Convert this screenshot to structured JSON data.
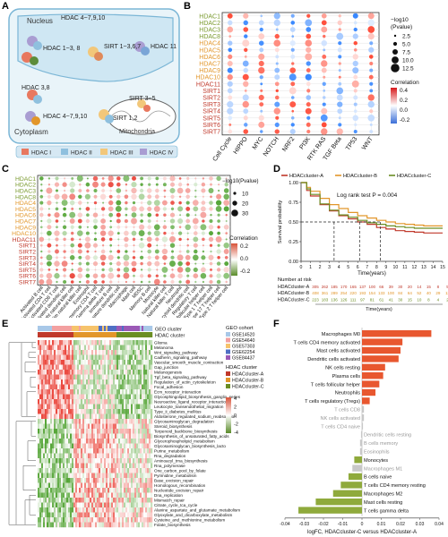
{
  "panel_labels": [
    "A",
    "B",
    "C",
    "D",
    "E",
    "F"
  ],
  "panelA": {
    "nucleus_label": "Nucleus",
    "cytoplasm_label": "Cytoplasm",
    "mito_label": "Mitochondria",
    "labels": [
      "HDAC 4~7,9,10",
      "HDAC 1~3, 8",
      "SIRT 1~3,6,7",
      "HDAC 11",
      "HDAC 3,8",
      "HDAC 4~7,9,10",
      "SIRT 1,2",
      "SIRT 3~5"
    ],
    "legend": [
      {
        "label": "HDAC I",
        "color": "#e8785f"
      },
      {
        "label": "HDAC II",
        "color": "#8fc0de"
      },
      {
        "label": "HDAC III",
        "color": "#f2c77a"
      },
      {
        "label": "HDAC IV",
        "color": "#a99dd2"
      }
    ]
  },
  "panelB": {
    "rows": [
      {
        "label": "HDAC1",
        "color": "#7a9a2e"
      },
      {
        "label": "HDAC2",
        "color": "#7a9a2e"
      },
      {
        "label": "HDAC3",
        "color": "#7a9a2e"
      },
      {
        "label": "HDAC8",
        "color": "#7a9a2e"
      },
      {
        "label": "HDAC4",
        "color": "#e2962a"
      },
      {
        "label": "HDAC5",
        "color": "#e2962a"
      },
      {
        "label": "HDAC6",
        "color": "#e2962a"
      },
      {
        "label": "HDAC7",
        "color": "#e2962a"
      },
      {
        "label": "HDAC9",
        "color": "#e2962a"
      },
      {
        "label": "HDAC10",
        "color": "#e2962a"
      },
      {
        "label": "HDAC11",
        "color": "#c0392b"
      },
      {
        "label": "SIRT1",
        "color": "#c0392b"
      },
      {
        "label": "SIRT2",
        "color": "#c0392b"
      },
      {
        "label": "SIRT3",
        "color": "#c0392b"
      },
      {
        "label": "SIRT4",
        "color": "#c0392b"
      },
      {
        "label": "SIRT5",
        "color": "#c0392b"
      },
      {
        "label": "SIRT6",
        "color": "#c0392b"
      },
      {
        "label": "SIRT7",
        "color": "#c0392b"
      }
    ],
    "cols": [
      "Cell Cycle",
      "HIPPO",
      "MYC",
      "NOTCH",
      "NRF2",
      "PI3K",
      "RTK RAS",
      "TGF Beta",
      "TP53",
      "WNT"
    ],
    "size_legend_title": "−log10\n(Pvalue)",
    "size_legend": [
      "2.5",
      "5.0",
      "7.5",
      "10.0",
      "12.5"
    ],
    "color_legend_title": "Correlation",
    "color_ticks": [
      "0.4",
      "0.2",
      "0.0",
      "-0.2"
    ]
  },
  "panelC": {
    "rows": [
      {
        "label": "HDAC1",
        "color": "#7a9a2e"
      },
      {
        "label": "HDAC2",
        "color": "#7a9a2e"
      },
      {
        "label": "HDAC3",
        "color": "#7a9a2e"
      },
      {
        "label": "HDAC8",
        "color": "#7a9a2e"
      },
      {
        "label": "HDAC4",
        "color": "#e2962a"
      },
      {
        "label": "HDAC5",
        "color": "#e2962a"
      },
      {
        "label": "HDAC6",
        "color": "#e2962a"
      },
      {
        "label": "HDAC7",
        "color": "#e2962a"
      },
      {
        "label": "HDAC9",
        "color": "#e2962a"
      },
      {
        "label": "HDAC10",
        "color": "#e2962a"
      },
      {
        "label": "HDAC11",
        "color": "#c0392b"
      },
      {
        "label": "SIRT1",
        "color": "#c0392b"
      },
      {
        "label": "SIRT2",
        "color": "#c0392b"
      },
      {
        "label": "SIRT3",
        "color": "#c0392b"
      },
      {
        "label": "SIRT4",
        "color": "#c0392b"
      },
      {
        "label": "SIRT5",
        "color": "#c0392b"
      },
      {
        "label": "SIRT6",
        "color": "#c0392b"
      },
      {
        "label": "SIRT7",
        "color": "#c0392b"
      }
    ],
    "cols": [
      "Activated B cell",
      "Activated CD4 T cell",
      "Activated CD8 T cell",
      "Activated dendritic cell",
      "CD56bright natural killer cell",
      "CD56dim natural killer cell",
      "Eosinophil",
      "Effector memory CD4 T cell",
      "Gamma delta T cell",
      "Immature B cell",
      "Immature dendritic cell",
      "Macrophage",
      "Mast cell",
      "MDSC",
      "Memory B cell",
      "Monocyte",
      "Natural killer cell",
      "Natural killer T cell",
      "Neutrophil",
      "Plasmacytoid dendritic cell",
      "Regulatory T cell",
      "T follicular helper cell",
      "Type 1 T helper cell",
      "Type 17 T helper cell",
      "Type 2 T helper cell"
    ],
    "size_legend_title": "−log10(Pvalue)",
    "size_legend": [
      "10",
      "20",
      "30"
    ],
    "color_legend_title": "Correlation",
    "color_ticks": [
      "0.2",
      "0.0",
      "-0.2"
    ]
  },
  "panelD": {
    "legend": [
      {
        "label": "HDACcluster-A",
        "color": "#c0392b"
      },
      {
        "label": "HDACcluster-B",
        "color": "#e2962a"
      },
      {
        "label": "HDACcluster-C",
        "color": "#6b8e23"
      }
    ],
    "annotation": "Log rank test P = 0.004",
    "ylabel": "Survival probability",
    "xlabel": "Time(years)",
    "xticks": [
      "0",
      "1",
      "2",
      "3",
      "4",
      "5",
      "6",
      "7",
      "8",
      "9",
      "10",
      "11",
      "12",
      "13",
      "14",
      "15"
    ],
    "yticks": [
      "0.00",
      "0.25",
      "0.50",
      "0.75",
      "1.00"
    ],
    "risk_title": "Number at risk",
    "risk_rows": [
      {
        "label": "HDACcluster-A",
        "color": "#c0392b",
        "values": [
          "305",
          "262",
          "185",
          "170",
          "165",
          "137",
          "100",
          "66",
          "39",
          "30",
          "20",
          "14",
          "15",
          "8",
          "5",
          "1"
        ]
      },
      {
        "label": "HDACcluster-B",
        "color": "#e2962a",
        "values": [
          "408",
          "361",
          "289",
          "254",
          "220",
          "193",
          "154",
          "133",
          "100",
          "84",
          "64",
          "52",
          "40",
          "29",
          "11",
          "0"
        ]
      },
      {
        "label": "HDACcluster-C",
        "color": "#6b8e23",
        "values": [
          "223",
          "183",
          "136",
          "126",
          "111",
          "97",
          "81",
          "61",
          "41",
          "30",
          "15",
          "10",
          "8",
          "4",
          "2",
          "0"
        ]
      }
    ],
    "risk_xlabel": "Time(years)"
  },
  "panelE": {
    "legend_geo_title": "GEO cohort",
    "geo_cohorts": [
      {
        "label": "GSE14520",
        "color": "#a8c8e8"
      },
      {
        "label": "GSE54640",
        "color": "#f3a0a0"
      },
      {
        "label": "GSE57303",
        "color": "#f6c36b"
      },
      {
        "label": "GSE62254",
        "color": "#4f6fc4"
      },
      {
        "label": "GSE84437",
        "color": "#9b59b6"
      }
    ],
    "legend_hdac_title": "HDAC cluster",
    "hdac_clusters": [
      {
        "label": "HDACcluster-A",
        "color": "#c0392b"
      },
      {
        "label": "HDACcluster-B",
        "color": "#e2962a"
      },
      {
        "label": "HDACcluster-C",
        "color": "#6b8e23"
      }
    ],
    "track_labels": [
      "GEO cluster",
      "HDAC cluster"
    ],
    "color_ticks": [
      "4",
      "2",
      "0",
      "-2",
      "-4"
    ],
    "pathways": [
      "Glioma",
      "Melanoma",
      "Wnt_signaling_pathway",
      "Cadherin_signaling_pathway",
      "Vascular_smooth_muscle_contraction",
      "Gap_junction",
      "Melanogenesis",
      "Tgf_beta_signaling_pathway",
      "Regulation_of_actin_cytoskeleton",
      "Focal_adhesion",
      "Ecm_receptor_interaction",
      "Glycosphingolipid_biosynthesis_ganglio_series",
      "Neuroactive_ligand_receptor_interaction",
      "Leukocyte_transendothelial_migration",
      "Type_ii_diabetes_mellitus",
      "Aldosterone_regulated_sodium_reabsorption",
      "Glycosaminoglycan_degradation",
      "Steroid_biosynthesis",
      "Terpenoid_backbone_biosynthesis",
      "Biosynthesis_of_unsaturated_fatty_acids",
      "Glycerophospholipid_metabolism",
      "Glycosaminoglycan_biosynthesis_lacto",
      "Purine_metabolism",
      "Rna_degradation",
      "Aminoacyl_trna_biosynthesis",
      "Rna_polymerase",
      "One_carbon_pool_by_folate",
      "Pyrimidine_metabolism",
      "Base_excision_repair",
      "Homologous_recombination",
      "Nucleotide_excision_repair",
      "Dna_replication",
      "Mismatch_repair",
      "Citrate_cycle_tca_cycle",
      "Alanine_aspartate_and_glutamate_metabolism",
      "Glyoxylate_and_dicarboxylate_metabolism",
      "Cysteine_and_methionine_metabolism",
      "Folate_biosynthesis"
    ]
  },
  "panelF": {
    "chart_data": {
      "type": "bar",
      "xlabel": "logFC, HDACcluster-C versus HDACcluster-A",
      "xlim": [
        -0.04,
        0.04
      ],
      "xticks": [
        "-0.04",
        "-0.03",
        "-0.02",
        "-0.01",
        "0",
        "0.01",
        "0.02",
        "0.03",
        "0.04"
      ],
      "categories": [
        "Macrophages M0",
        "T cells CD4 memory activated",
        "Mast cells activated",
        "Dendritic cells activated",
        "NK cells resting",
        "Plasma cells",
        "T cells follicular helper",
        "Neutrophils",
        "T cells regulatory (Tregs)",
        "T cells CD8",
        "NK cells activated",
        "T cells CD4 naive",
        "Dendritic cells resting",
        "B cells memory",
        "Eosinophils",
        "Monocytes",
        "Macrophages M1",
        "B cells naive",
        "T cells CD4 memory resting",
        "Macrophages M2",
        "Mast cells resting",
        "T cells gamma delta"
      ],
      "values": [
        0.036,
        0.021,
        0.02,
        0.019,
        0.012,
        0.011,
        0.009,
        0.007,
        0.004,
        0.001,
        0.001,
        0.0005,
        -0.0005,
        -0.001,
        -0.001,
        -0.004,
        -0.005,
        -0.007,
        -0.011,
        -0.015,
        -0.024,
        -0.033
      ],
      "significant": [
        true,
        true,
        true,
        true,
        true,
        true,
        true,
        true,
        true,
        false,
        false,
        false,
        false,
        false,
        false,
        true,
        false,
        true,
        true,
        true,
        true,
        true
      ],
      "colors": {
        "positive": "#e8572f",
        "negative": "#8faa3c",
        "nonsig": "#c8c8c8"
      }
    }
  }
}
